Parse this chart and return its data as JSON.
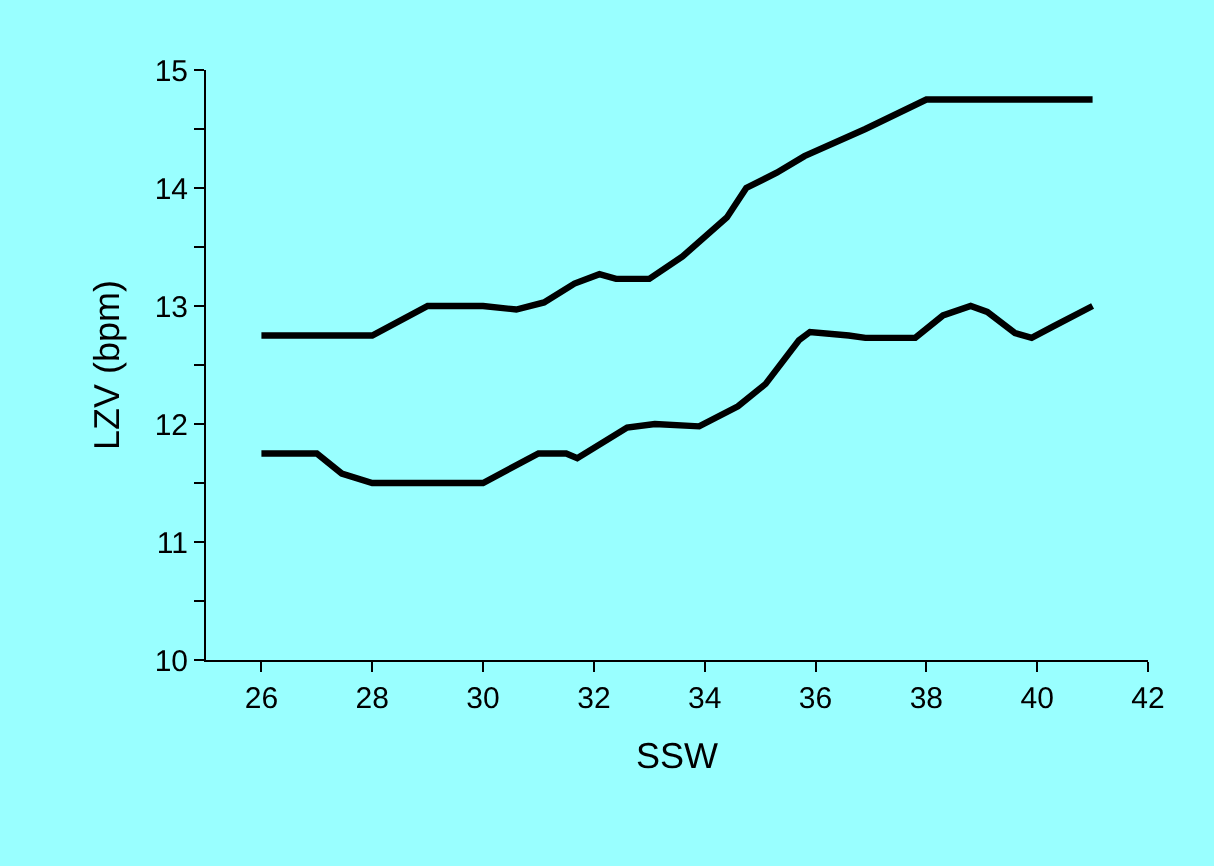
{
  "chart_data": {
    "type": "line",
    "xlabel": "SSW",
    "ylabel": "LZV (bpm)",
    "xlim": [
      25,
      42
    ],
    "xticks": [
      26,
      28,
      30,
      32,
      34,
      36,
      38,
      40,
      42
    ],
    "ylim": [
      10,
      15
    ],
    "yticks": [
      10,
      {
        "value": 10.5,
        "label": null
      },
      11,
      {
        "value": 11.5,
        "label": null
      },
      12,
      {
        "value": 12.5,
        "label": null
      },
      13,
      {
        "value": 13.5,
        "label": null
      },
      14,
      {
        "value": 14.5,
        "label": null
      },
      15
    ],
    "grid": false,
    "marker": "none",
    "line_style": "solid",
    "series": [
      {
        "color": "#000000",
        "x": [
          26,
          28,
          29,
          30,
          30.6,
          31.1,
          31.65,
          32.1,
          32.4,
          33,
          33.6,
          34.4,
          34.75,
          35.3,
          35.8,
          36.9,
          38,
          41
        ],
        "values": [
          12.75,
          12.75,
          13.0,
          13.0,
          12.97,
          13.03,
          13.19,
          13.27,
          13.23,
          13.23,
          13.42,
          13.75,
          14.0,
          14.13,
          14.27,
          14.5,
          14.75,
          14.75
        ]
      },
      {
        "color": "#000000",
        "x": [
          26,
          27,
          27.45,
          28,
          30,
          31,
          31.5,
          31.7,
          32.6,
          33.1,
          33.9,
          34.6,
          35.1,
          35.7,
          35.9,
          36.6,
          36.9,
          37.8,
          38.3,
          38.8,
          39.1,
          39.6,
          39.9,
          40.3,
          41
        ],
        "values": [
          11.75,
          11.75,
          11.58,
          11.5,
          11.5,
          11.75,
          11.75,
          11.71,
          11.97,
          12.0,
          11.98,
          12.15,
          12.34,
          12.71,
          12.78,
          12.75,
          12.73,
          12.73,
          12.92,
          13.0,
          12.95,
          12.77,
          12.73,
          12.83,
          13.0
        ]
      }
    ]
  }
}
